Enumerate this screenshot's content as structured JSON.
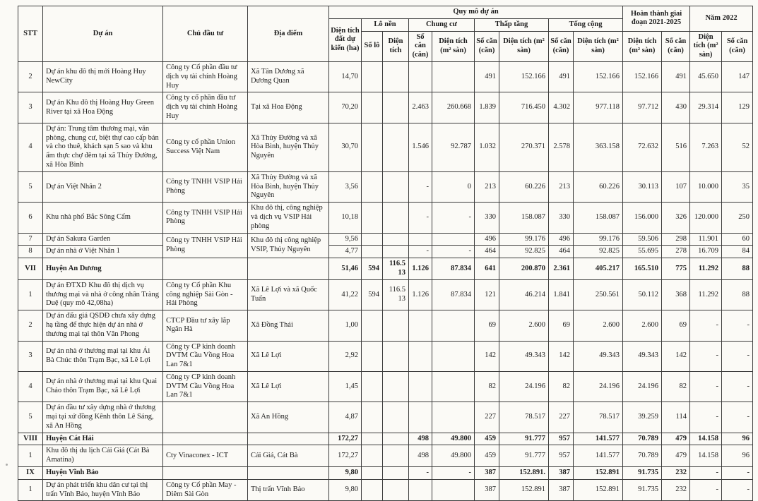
{
  "table": {
    "header": {
      "stt": "STT",
      "du_an": "Dự án",
      "chu_dau_tu": "Chủ đầu tư",
      "dia_diem": "Địa điểm",
      "quy_mo": "Quy mô dự án",
      "dt_dat": "Diện tích đất dự kiến (ha)",
      "lo_nen": "Lô nền",
      "so_lo": "Số lô",
      "dien_tich": "Diện tích",
      "chung_cu": "Chung cư",
      "thap_tang": "Thấp tầng",
      "tong_cong": "Tổng cộng",
      "so_can_can": "Số căn (căn)",
      "dt_m2_san": "Diện tích (m² sàn)",
      "dt_m2_san_wide": "Diện tích (m² sàn)",
      "hoan_thanh": "Hoàn thành giai đoạn 2021-2025",
      "nam_2022": "Năm 2022"
    },
    "value_columns": [
      "dt_dat_ha",
      "so_lo",
      "dt_lo_nen",
      "cc_so_can",
      "cc_dien_tich",
      "tt_so_can",
      "tt_dien_tich",
      "tc_so_can",
      "tc_dien_tich",
      "ht_dien_tich",
      "ht_so_can",
      "n2022_dien_tich",
      "n2022_so_can"
    ],
    "rows": [
      {
        "stt": "2",
        "project": "Dự án khu đô thị mới Hoàng Huy NewCity",
        "investor": "Công ty Cổ phần đầu tư dịch vụ tài chính Hoàng Huy",
        "location": "Xã Tân Dương xã Dương Quan",
        "bold": false,
        "values": [
          "14,70",
          "",
          "",
          "",
          "",
          "491",
          "152.166",
          "491",
          "152.166",
          "152.166",
          "491",
          "45.650",
          "147"
        ]
      },
      {
        "stt": "3",
        "project": "Dự án Khu đô thị Hoàng Huy Green River tại xã Hoa Động",
        "investor": "Công ty cổ phần đầu tư dịch vụ tài chính Hoàng Huy",
        "location": "Tại xã Hoa Động",
        "bold": false,
        "values": [
          "70,20",
          "",
          "",
          "2.463",
          "260.668",
          "1.839",
          "716.450",
          "4.302",
          "977.118",
          "97.712",
          "430",
          "29.314",
          "129"
        ]
      },
      {
        "stt": "4",
        "project": "Dự án: Trung tâm thương mại, văn phòng, chung cư, biệt thự cao cấp bán và cho thuê, khách sạn 5 sao và khu ẩm thực chợ đêm tại xã Thủy Đường, xã Hòa Bình",
        "investor": "Công ty cổ phần Union Success Việt Nam",
        "location": "Xã Thủy Đường và xã Hòa Bình, huyện Thủy Nguyên",
        "bold": false,
        "values": [
          "30,70",
          "",
          "",
          "1.546",
          "92.787",
          "1.032",
          "270.371",
          "2.578",
          "363.158",
          "72.632",
          "516",
          "7.263",
          "52"
        ]
      },
      {
        "stt": "5",
        "project": "Dự án Việt Nhân 2",
        "investor": "Công ty TNHH VSIP Hải Phòng",
        "location": "Xã Thủy Đường và xã Hòa Bình, huyện Thủy Nguyên",
        "bold": false,
        "values": [
          "3,56",
          "",
          "",
          "-",
          "0",
          "213",
          "60.226",
          "213",
          "60.226",
          "30.113",
          "107",
          "10.000",
          "35"
        ]
      },
      {
        "stt": "6",
        "project": "Khu nhà phố Bắc Sông Cẩm",
        "investor": "Công ty TNHH VSIP Hải Phòng",
        "location": "Khu đô thị, công nghiệp và dịch vụ VSIP Hải phòng",
        "bold": false,
        "values": [
          "10,18",
          "",
          "",
          "-",
          "-",
          "330",
          "158.087",
          "330",
          "158.087",
          "156.000",
          "326",
          "120.000",
          "250"
        ]
      },
      {
        "stt": "7",
        "project": "Dự án Sakura Garden",
        "investor": "Công ty TNHH VSIP Hải Phòng",
        "location": "Khu đô thị công nghiệp VSIP, Thủy Nguyên",
        "bold": false,
        "investor_rowspan": 2,
        "location_rowspan": 2,
        "values": [
          "9,56",
          "",
          "",
          "",
          "",
          "496",
          "99.176",
          "496",
          "99.176",
          "59.506",
          "298",
          "11.901",
          "60"
        ]
      },
      {
        "stt": "8",
        "project": "Dự án nhà ở Việt Nhân 1",
        "bold": false,
        "merged_into_above": true,
        "values": [
          "4,77",
          "",
          "",
          "-",
          "-",
          "464",
          "92.825",
          "464",
          "92.825",
          "55.695",
          "278",
          "16.709",
          "84"
        ]
      },
      {
        "stt": "VII",
        "project": "Huyện An Dương",
        "investor": "",
        "location": "",
        "bold": true,
        "values": [
          "51,46",
          "594",
          "116.513",
          "1.126",
          "87.834",
          "641",
          "200.870",
          "2.361",
          "405.217",
          "165.510",
          "775",
          "11.292",
          "88"
        ]
      },
      {
        "stt": "1",
        "project": "Dự án ĐTXD Khu đô thị dịch vụ thương mại và nhà ở công nhân Tràng Duệ (quy mô 42,08ha)",
        "investor": "Công ty Cổ phần Khu công nghiệp Sài Gòn - Hải Phòng",
        "location": "Xã Lê Lợi và xã Quốc Tuấn",
        "bold": false,
        "values": [
          "41,22",
          "594",
          "116.513",
          "1.126",
          "87.834",
          "121",
          "46.214",
          "1.841",
          "250.561",
          "50.112",
          "368",
          "11.292",
          "88"
        ]
      },
      {
        "stt": "2",
        "project": "Dự án đấu giá QSDĐ chưa xây dựng hạ tầng để thực hiện dự án nhà ở thương mại tại thôn Văn Phong",
        "investor": "CTCP Đầu tư xây lắp Ngân Hà",
        "location": "Xã Đồng Thái",
        "bold": false,
        "values": [
          "1,00",
          "",
          "",
          "",
          "",
          "69",
          "2.600",
          "69",
          "2.600",
          "2.600",
          "69",
          "-",
          "-"
        ]
      },
      {
        "stt": "3",
        "project": "Dự án nhà ở thương mại tại khu Ái Bà Chúc thôn Trạm Bạc, xã Lê Lợi",
        "investor": "Công ty CP kinh doanh DVTM Cầu Vồng Hoa Lan 7&1",
        "location": "Xã Lê Lợi",
        "bold": false,
        "values": [
          "2,92",
          "",
          "",
          "",
          "",
          "142",
          "49.343",
          "142",
          "49.343",
          "49.343",
          "142",
          "-",
          "-"
        ]
      },
      {
        "stt": "4",
        "project": "Dự án nhà ở thương mại tại khu Quai Chảo thôn Trạm Bạc, xã Lê Lợi",
        "investor": "Công ty CP kinh doanh DVTM Cầu Vồng Hoa Lan 7&1",
        "location": "Xã Lê Lợi",
        "bold": false,
        "values": [
          "1,45",
          "",
          "",
          "",
          "",
          "82",
          "24.196",
          "82",
          "24.196",
          "24.196",
          "82",
          "-",
          "-"
        ]
      },
      {
        "stt": "5",
        "project": "Dự án đầu tư xây dựng nhà ở thương mại tại xứ đồng Kênh thôn Lê Sáng, xã An Hồng",
        "investor": "",
        "location": "Xã An Hồng",
        "bold": false,
        "values": [
          "4,87",
          "",
          "",
          "",
          "",
          "227",
          "78.517",
          "227",
          "78.517",
          "39.259",
          "114",
          "-",
          "-"
        ]
      },
      {
        "stt": "VIII",
        "project": "Huyện Cát Hải",
        "investor": "",
        "location": "",
        "bold": true,
        "values": [
          "172,27",
          "",
          "",
          "498",
          "49.800",
          "459",
          "91.777",
          "957",
          "141.577",
          "70.789",
          "479",
          "14.158",
          "96"
        ]
      },
      {
        "stt": "1",
        "project": "Khu đô thị du lịch Cái Giá (Cát Bà Amatina)",
        "investor": "Cty Vinaconex - ICT",
        "location": "Cái Giá, Cát Bà",
        "bold": false,
        "values": [
          "172,27",
          "",
          "",
          "498",
          "49.800",
          "459",
          "91.777",
          "957",
          "141.577",
          "70.789",
          "479",
          "14.158",
          "96"
        ]
      },
      {
        "stt": "IX",
        "project": "Huyện Vĩnh Bảo",
        "investor": "",
        "location": "",
        "bold": true,
        "values": [
          "9,80",
          "",
          "",
          "-",
          "-",
          "387",
          "152.891.",
          "387",
          "152.891",
          "91.735",
          "232",
          "-",
          "-"
        ]
      },
      {
        "stt": "1",
        "project": "Dự án phát triển khu dân cư tại thị trấn Vĩnh Bảo, huyện Vĩnh Bảo",
        "investor": "Công ty Cổ phần May - Diêm Sài Gòn",
        "location": "Thị trấn Vĩnh Bảo",
        "bold": false,
        "values": [
          "9,80",
          "",
          "",
          "",
          "",
          "387",
          "152.891",
          "387",
          "152.891",
          "91.735",
          "232",
          "-",
          "-"
        ]
      }
    ]
  }
}
